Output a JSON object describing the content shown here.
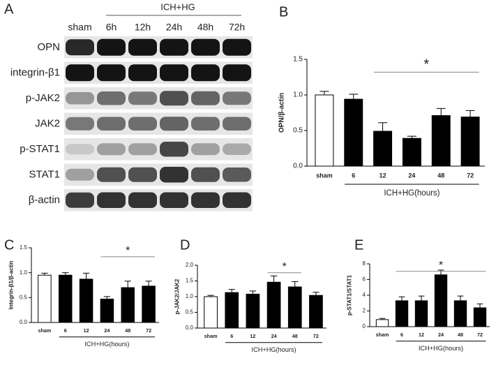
{
  "blot": {
    "panel": "A",
    "group_label": "ICH+HG",
    "lanes": [
      "sham",
      "6h",
      "12h",
      "24h",
      "48h",
      "72h"
    ],
    "rows": [
      "OPN",
      "integrin-β1",
      "p-JAK2",
      "JAK2",
      "p-STAT1",
      "STAT1",
      "β-actin"
    ]
  },
  "chart_data": [
    {
      "type": "bar",
      "panel": "B",
      "ylabel": "OPN/β-actin",
      "xlabel": "ICH+HG(hours)",
      "categories": [
        "sham",
        "6",
        "12",
        "24",
        "48",
        "72"
      ],
      "values": [
        1.0,
        0.94,
        0.49,
        0.39,
        0.71,
        0.69
      ],
      "errors": [
        0.05,
        0.07,
        0.12,
        0.03,
        0.1,
        0.09
      ],
      "colors": [
        "#ffffff",
        "#000000",
        "#000000",
        "#000000",
        "#000000",
        "#000000"
      ],
      "ylim": [
        0,
        1.5
      ],
      "yticks": [
        {
          "value": 0,
          "label": "0.0"
        },
        0.5,
        {
          "value": 1,
          "label": "1.0"
        },
        1.5
      ],
      "annotation": "*",
      "annotation_span": [
        "12",
        "72"
      ]
    },
    {
      "type": "bar",
      "panel": "C",
      "ylabel": "Integrin-β1/β-actin",
      "xlabel": "ICH+HG(hours)",
      "categories": [
        "sham",
        "6",
        "12",
        "24",
        "48",
        "72"
      ],
      "values": [
        0.95,
        0.95,
        0.87,
        0.47,
        0.7,
        0.73
      ],
      "errors": [
        0.04,
        0.05,
        0.12,
        0.05,
        0.13,
        0.1
      ],
      "colors": [
        "#ffffff",
        "#000000",
        "#000000",
        "#000000",
        "#000000",
        "#000000"
      ],
      "ylim": [
        0,
        1.5
      ],
      "yticks": [
        {
          "value": 0,
          "label": "0.0"
        },
        0.5,
        {
          "value": 1,
          "label": "1.0"
        },
        1.5
      ],
      "annotation": "*",
      "annotation_span": [
        "24",
        "72"
      ]
    },
    {
      "type": "bar",
      "panel": "D",
      "ylabel": "p-JAK2/JAK2",
      "xlabel": "ICH+HG(hours)",
      "categories": [
        "sham",
        "6",
        "12",
        "24",
        "48",
        "72"
      ],
      "values": [
        1.0,
        1.13,
        1.08,
        1.46,
        1.31,
        1.04
      ],
      "errors": [
        0.04,
        0.1,
        0.1,
        0.2,
        0.17,
        0.1
      ],
      "colors": [
        "#ffffff",
        "#000000",
        "#000000",
        "#000000",
        "#000000",
        "#000000"
      ],
      "ylim": [
        0,
        2
      ],
      "yticks": [
        {
          "value": 0,
          "label": "0.0"
        },
        0.5,
        {
          "value": 1,
          "label": "1.0"
        },
        1.5,
        {
          "value": 2,
          "label": "2.0"
        }
      ],
      "annotation": "*",
      "annotation_span": [
        "24",
        "48"
      ]
    },
    {
      "type": "bar",
      "panel": "E",
      "ylabel": "p-STAT1/STAT1",
      "xlabel": "ICH+HG(hours)",
      "categories": [
        "sham",
        "6",
        "12",
        "24",
        "48",
        "72"
      ],
      "values": [
        0.9,
        3.3,
        3.3,
        6.6,
        3.3,
        2.4
      ],
      "errors": [
        0.15,
        0.5,
        0.6,
        0.6,
        0.6,
        0.5
      ],
      "colors": [
        "#ffffff",
        "#000000",
        "#000000",
        "#000000",
        "#000000",
        "#000000"
      ],
      "ylim": [
        0,
        8
      ],
      "yticks": [
        0,
        2,
        4,
        6,
        8
      ],
      "annotation": "*",
      "annotation_span": [
        "6",
        "72"
      ]
    }
  ]
}
